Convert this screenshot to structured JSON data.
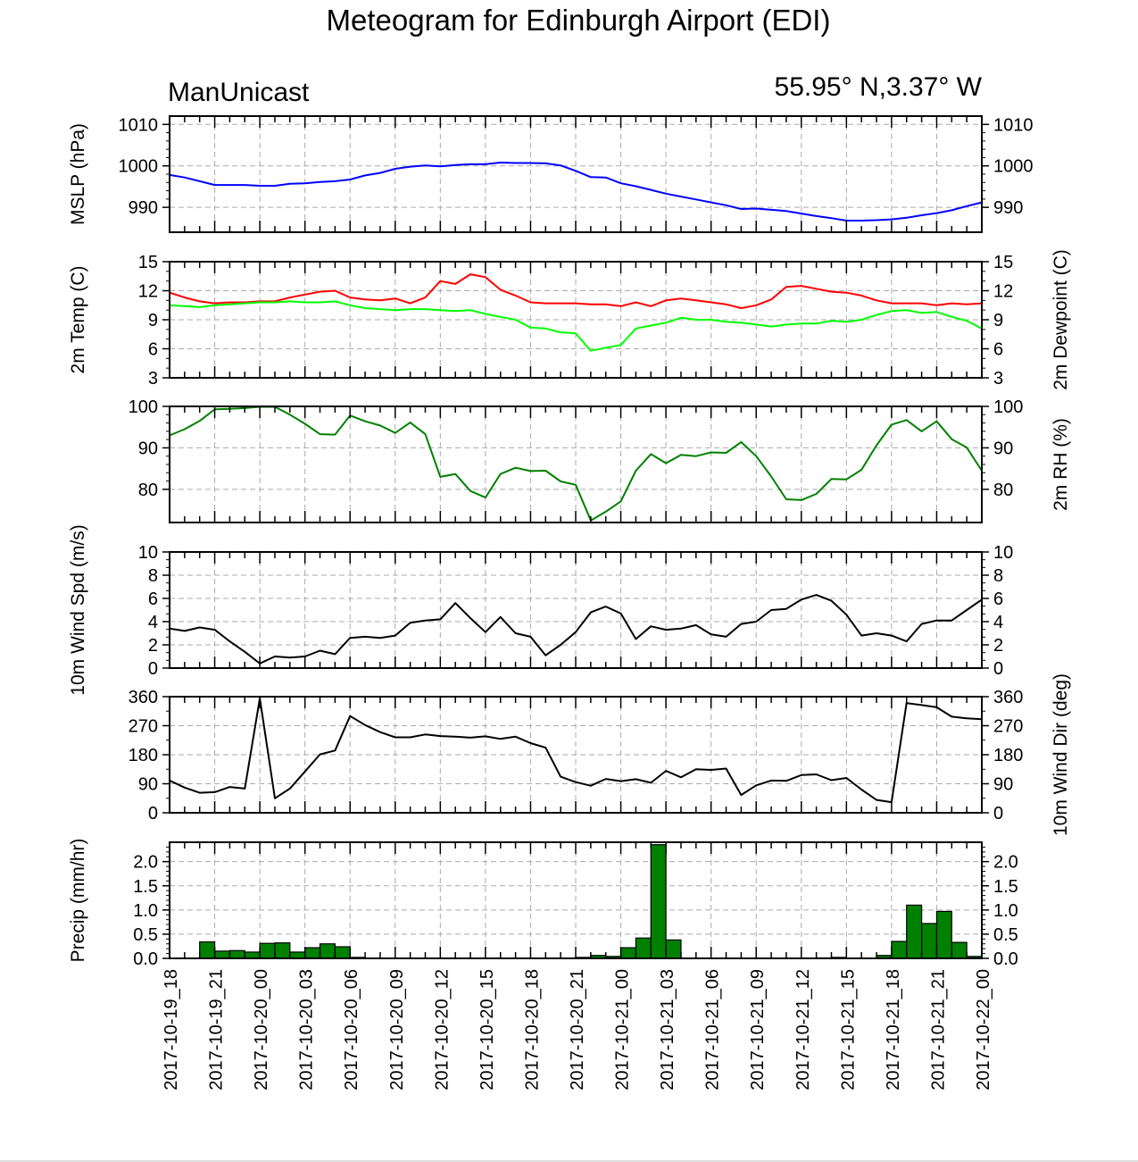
{
  "header": {
    "title": "Meteogram for Edinburgh Airport (EDI)",
    "left": "ManUnicast",
    "right": "55.95° N,3.37° W"
  },
  "chart_data": {
    "type": "line",
    "x_labels": [
      "2017-10-19_18",
      "2017-10-19_21",
      "2017-10-20_00",
      "2017-10-20_03",
      "2017-10-20_06",
      "2017-10-20_09",
      "2017-10-20_12",
      "2017-10-20_15",
      "2017-10-20_18",
      "2017-10-20_21",
      "2017-10-21_00",
      "2017-10-21_03",
      "2017-10-21_06",
      "2017-10-21_09",
      "2017-10-21_12",
      "2017-10-21_15",
      "2017-10-21_18",
      "2017-10-21_21",
      "2017-10-22_00"
    ],
    "x_range_hours": [
      0,
      54
    ],
    "grid": true,
    "panels": [
      {
        "id": "mslp",
        "type": "line",
        "ylabel_left": "MSLP (hPa)",
        "ylabel_right": "",
        "ylim": [
          984,
          1012
        ],
        "ticks": [
          990,
          1000,
          1010
        ],
        "right_ticks": true,
        "series": [
          {
            "color": "#0000ff",
            "x": [
              0,
              1,
              2,
              3,
              4,
              5,
              6,
              7,
              8,
              9,
              10,
              11,
              12,
              13,
              14,
              15,
              16,
              17,
              18,
              19,
              20,
              21,
              22,
              23,
              24,
              25,
              26,
              27,
              28,
              29,
              30,
              31,
              32,
              33,
              34,
              35,
              36,
              37,
              38,
              39,
              40,
              41,
              42,
              43,
              44,
              45,
              46,
              47,
              48,
              49,
              50,
              51,
              52,
              53,
              54
            ],
            "values": [
              997.8,
              997.2,
              996.3,
              995.4,
              995.4,
              995.4,
              995.2,
              995.2,
              995.7,
              995.8,
              996.1,
              996.3,
              996.7,
              997.7,
              998.3,
              999.3,
              999.8,
              1000.1,
              999.9,
              1000.2,
              1000.4,
              1000.4,
              1000.8,
              1000.7,
              1000.7,
              1000.6,
              1000.1,
              998.8,
              997.3,
              997.2,
              995.8,
              995.1,
              994.2,
              993.3,
              992.6,
              991.9,
              991.2,
              990.5,
              989.6,
              989.7,
              989.4,
              989.1,
              988.5,
              987.9,
              987.4,
              986.8,
              986.8,
              986.9,
              987.1,
              987.5,
              988.1,
              988.6,
              989.3,
              990.3,
              991.2
            ]
          }
        ]
      },
      {
        "id": "temp",
        "type": "line",
        "ylabel_left": "2m Temp (C)",
        "ylabel_right": "2m Dewpoint (C)",
        "ylim": [
          3,
          15
        ],
        "ticks": [
          3,
          6,
          9,
          12,
          15
        ],
        "right_ticks": true,
        "series": [
          {
            "color": "#ff0000",
            "x": [
              0,
              1,
              2,
              3,
              4,
              5,
              6,
              7,
              8,
              9,
              10,
              11,
              12,
              13,
              14,
              15,
              16,
              17,
              18,
              19,
              20,
              21,
              22,
              23,
              24,
              25,
              26,
              27,
              28,
              29,
              30,
              31,
              32,
              33,
              34,
              35,
              36,
              37,
              38,
              39,
              40,
              41,
              42,
              43,
              44,
              45,
              46,
              47,
              48,
              49,
              50,
              51,
              52,
              53,
              54
            ],
            "values": [
              11.8,
              11.3,
              10.9,
              10.7,
              10.8,
              10.8,
              10.9,
              10.9,
              11.3,
              11.6,
              11.9,
              12.0,
              11.3,
              11.1,
              11.0,
              11.2,
              10.7,
              11.3,
              13.0,
              12.7,
              13.7,
              13.4,
              12.1,
              11.5,
              10.8,
              10.7,
              10.7,
              10.7,
              10.6,
              10.6,
              10.4,
              10.8,
              10.4,
              11.0,
              11.2,
              11.0,
              10.8,
              10.6,
              10.2,
              10.5,
              11.1,
              12.4,
              12.5,
              12.2,
              11.9,
              11.8,
              11.5,
              11.0,
              10.7,
              10.7,
              10.7,
              10.5,
              10.7,
              10.6,
              10.7
            ]
          },
          {
            "color": "#00ff00",
            "x": [
              0,
              1,
              2,
              3,
              4,
              5,
              6,
              7,
              8,
              9,
              10,
              11,
              12,
              13,
              14,
              15,
              16,
              17,
              18,
              19,
              20,
              21,
              22,
              23,
              24,
              25,
              26,
              27,
              28,
              29,
              30,
              31,
              32,
              33,
              34,
              35,
              36,
              37,
              38,
              39,
              40,
              41,
              42,
              43,
              44,
              45,
              46,
              47,
              48,
              49,
              50,
              51,
              52,
              53,
              54
            ],
            "values": [
              10.5,
              10.4,
              10.3,
              10.5,
              10.6,
              10.7,
              10.8,
              10.8,
              10.9,
              10.8,
              10.8,
              10.9,
              10.5,
              10.2,
              10.1,
              10.0,
              10.1,
              10.1,
              10.0,
              9.9,
              10.0,
              9.6,
              9.3,
              9.0,
              8.2,
              8.1,
              7.7,
              7.6,
              5.8,
              6.1,
              6.4,
              8.1,
              8.4,
              8.7,
              9.2,
              9.0,
              9.0,
              8.8,
              8.7,
              8.5,
              8.3,
              8.5,
              8.6,
              8.6,
              8.9,
              8.8,
              9.0,
              9.5,
              9.9,
              10.0,
              9.7,
              9.8,
              9.3,
              8.9,
              8.1
            ]
          }
        ]
      },
      {
        "id": "rh",
        "type": "line",
        "ylabel_left": "",
        "ylabel_right": "2m RH (%)",
        "ylim": [
          72,
          100
        ],
        "ticks": [
          80,
          90,
          100
        ],
        "right_ticks": true,
        "series": [
          {
            "color": "#008000",
            "x": [
              0,
              1,
              2,
              3,
              4,
              5,
              6,
              7,
              8,
              9,
              10,
              11,
              12,
              13,
              14,
              15,
              16,
              17,
              18,
              19,
              20,
              21,
              22,
              23,
              24,
              25,
              26,
              27,
              28,
              29,
              30,
              31,
              32,
              33,
              34,
              35,
              36,
              37,
              38,
              39,
              40,
              41,
              42,
              43,
              44,
              45,
              46,
              47,
              48,
              49,
              50,
              51,
              52,
              53,
              54
            ],
            "values": [
              93.0,
              94.5,
              96.5,
              99.3,
              99.4,
              99.6,
              99.9,
              99.9,
              98.0,
              95.8,
              93.3,
              93.2,
              97.8,
              96.4,
              95.4,
              93.6,
              96.1,
              93.3,
              83.0,
              83.7,
              79.6,
              78.0,
              83.7,
              85.2,
              84.4,
              84.5,
              81.9,
              81.1,
              72.5,
              74.6,
              77.1,
              84.5,
              88.5,
              86.3,
              88.3,
              88.0,
              88.9,
              88.8,
              91.4,
              88.0,
              83.1,
              77.6,
              77.4,
              78.9,
              82.5,
              82.4,
              84.7,
              90.6,
              95.6,
              96.7,
              94.0,
              96.4,
              92.1,
              90.1,
              84.5
            ]
          }
        ]
      },
      {
        "id": "wspd",
        "type": "line",
        "ylabel_left": "10m Wind Spd (m/s)",
        "ylabel_right": "",
        "ylim": [
          0,
          10
        ],
        "ticks": [
          0,
          2,
          4,
          6,
          8,
          10
        ],
        "right_ticks": true,
        "series": [
          {
            "color": "#000000",
            "x": [
              0,
              1,
              2,
              3,
              4,
              5,
              6,
              7,
              8,
              9,
              10,
              11,
              12,
              13,
              14,
              15,
              16,
              17,
              18,
              19,
              20,
              21,
              22,
              23,
              24,
              25,
              26,
              27,
              28,
              29,
              30,
              31,
              32,
              33,
              34,
              35,
              36,
              37,
              38,
              39,
              40,
              41,
              42,
              43,
              44,
              45,
              46,
              47,
              48,
              49,
              50,
              51,
              52,
              53,
              54
            ],
            "values": [
              3.4,
              3.2,
              3.5,
              3.3,
              2.3,
              1.4,
              0.4,
              1.0,
              0.9,
              1.0,
              1.5,
              1.2,
              2.6,
              2.7,
              2.6,
              2.8,
              3.9,
              4.1,
              4.2,
              5.6,
              4.3,
              3.1,
              4.4,
              3.0,
              2.7,
              1.1,
              2.0,
              3.1,
              4.8,
              5.3,
              4.7,
              2.5,
              3.6,
              3.3,
              3.4,
              3.7,
              2.9,
              2.7,
              3.8,
              4.0,
              5.0,
              5.1,
              5.9,
              6.3,
              5.8,
              4.6,
              2.8,
              3.0,
              2.8,
              2.3,
              3.8,
              4.1,
              4.1,
              5.0,
              5.9
            ]
          }
        ]
      },
      {
        "id": "wdir",
        "type": "line",
        "ylabel_left": "",
        "ylabel_right": "10m Wind Dir (deg)",
        "ylim": [
          0,
          360
        ],
        "ticks": [
          0,
          90,
          180,
          270,
          360
        ],
        "right_ticks": true,
        "series": [
          {
            "color": "#000000",
            "x": [
              0,
              1,
              2,
              3,
              4,
              5,
              6,
              7,
              8,
              9,
              10,
              11,
              12,
              13,
              14,
              15,
              16,
              17,
              18,
              19,
              20,
              21,
              22,
              23,
              24,
              25,
              26,
              27,
              28,
              29,
              30,
              31,
              32,
              33,
              34,
              35,
              36,
              37,
              38,
              39,
              40,
              41,
              42,
              43,
              44,
              45,
              46,
              47,
              48,
              49,
              50,
              51,
              52,
              53,
              54
            ],
            "values": [
              100,
              78,
              62,
              64,
              80,
              75,
              355,
              45,
              75,
              128,
              181,
              193,
              300,
              272,
              250,
              234,
              234,
              243,
              238,
              236,
              233,
              237,
              229,
              236,
              216,
              202,
              112,
              95,
              84,
              105,
              98,
              104,
              93,
              130,
              110,
              135,
              133,
              137,
              55,
              85,
              100,
              99,
              117,
              119,
              101,
              108,
              72,
              40,
              33,
              340,
              334,
              327,
              298,
              293,
              290
            ]
          }
        ]
      },
      {
        "id": "precip",
        "type": "bar",
        "ylabel_left": "Precip (mm/hr)",
        "ylabel_right": "",
        "ylim": [
          0,
          2.4
        ],
        "ticks": [
          0.0,
          0.5,
          1.0,
          1.5,
          2.0
        ],
        "right_ticks": true,
        "bar_color": "#008000",
        "series": [
          {
            "x": [
              1,
              2,
              3,
              4,
              5,
              6,
              7,
              8,
              9,
              10,
              11,
              12,
              13,
              14,
              15,
              16,
              17,
              18,
              19,
              20,
              21,
              22,
              23,
              24,
              25,
              26,
              27,
              28,
              29,
              30,
              31,
              32,
              33,
              34,
              35,
              36,
              37,
              38,
              39,
              40,
              41,
              42,
              43,
              44,
              45,
              46,
              47,
              48,
              49,
              50,
              51,
              52,
              53,
              54
            ],
            "values": [
              0.0,
              0.0,
              0.34,
              0.15,
              0.16,
              0.13,
              0.31,
              0.32,
              0.13,
              0.22,
              0.3,
              0.24,
              0.02,
              0,
              0,
              0,
              0,
              0,
              0,
              0,
              0,
              0,
              0,
              0,
              0,
              0,
              0,
              0.02,
              0.06,
              0.04,
              0.22,
              0.42,
              2.35,
              0.38,
              0,
              0,
              0,
              0,
              0,
              0,
              0,
              0,
              0,
              0.01,
              0.02,
              0,
              0,
              0.06,
              0.35,
              1.1,
              0.72,
              0.97,
              0.33,
              0.04
            ]
          }
        ]
      }
    ]
  }
}
